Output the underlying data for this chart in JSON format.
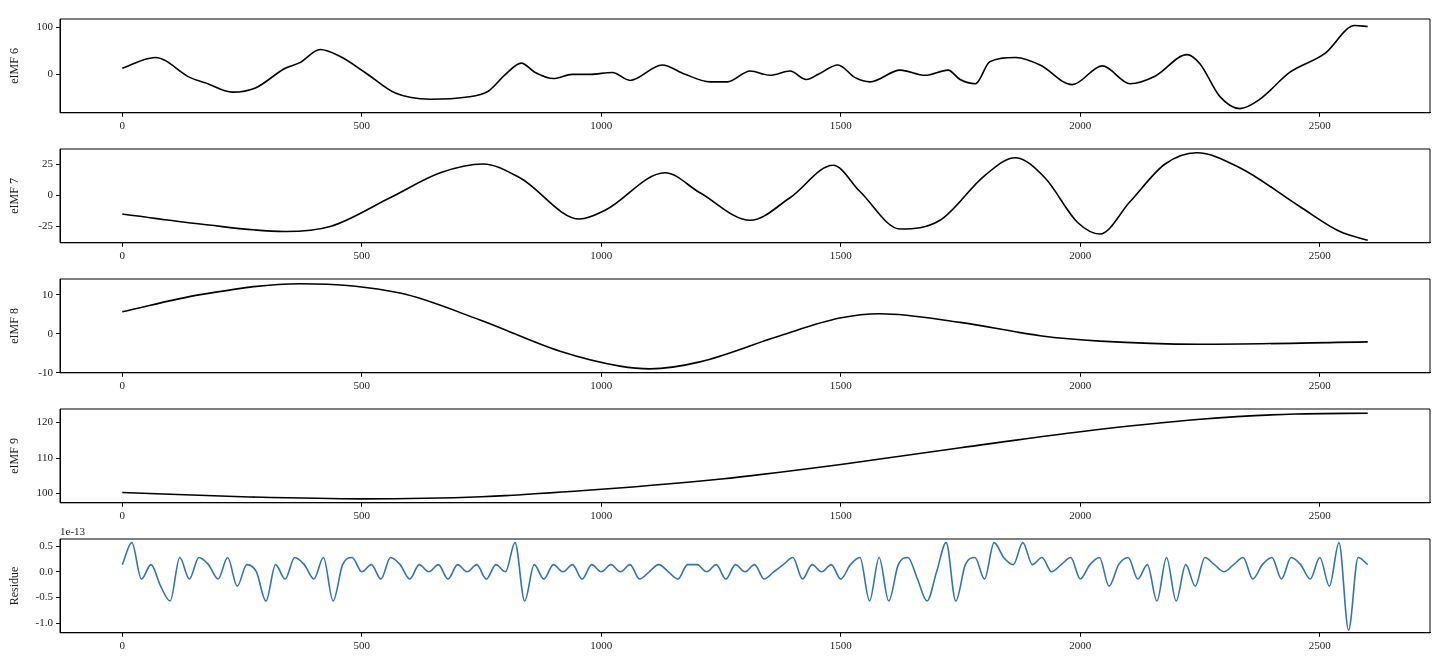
{
  "chart_data": [
    {
      "type": "line",
      "ylabel": "eIMF 6",
      "xlim": [
        -130,
        2730
      ],
      "xticks": [
        0,
        500,
        1000,
        1500,
        2000,
        2500
      ],
      "ylim": [
        -82,
        118
      ],
      "yticks": [
        0,
        100
      ],
      "x": [
        0,
        69,
        142,
        173,
        230,
        278,
        340,
        371,
        413,
        455,
        507,
        570,
        643,
        716,
        764,
        800,
        833,
        862,
        900,
        939,
        977,
        1023,
        1060,
        1127,
        1175,
        1227,
        1263,
        1311,
        1352,
        1394,
        1428,
        1453,
        1494,
        1530,
        1561,
        1624,
        1676,
        1724,
        1749,
        1781,
        1811,
        1864,
        1916,
        1983,
        2046,
        2104,
        2156,
        2223,
        2250,
        2291,
        2333,
        2375,
        2437,
        2510,
        2573,
        2600
      ],
      "series": [
        {
          "color": "#000000",
          "values": [
            13,
            36,
            -7,
            -18,
            -38,
            -29,
            13,
            25,
            53,
            38,
            4,
            -40,
            -53,
            -49,
            -36,
            0,
            24,
            4,
            -9,
            0,
            0,
            4,
            -13,
            20,
            0,
            -16,
            -16,
            7,
            -2,
            7,
            -11,
            0,
            20,
            -7,
            -16,
            9,
            -2,
            9,
            -11,
            -20,
            27,
            36,
            20,
            -22,
            18,
            -20,
            -4,
            42,
            22,
            -47,
            -73,
            -53,
            4,
            44,
            104,
            102
          ]
        }
      ]
    },
    {
      "type": "line",
      "ylabel": "eIMF 7",
      "xlim": [
        -130,
        2730
      ],
      "xticks": [
        0,
        500,
        1000,
        1500,
        2000,
        2500
      ],
      "ylim": [
        -38,
        37
      ],
      "yticks": [
        -25,
        0,
        25
      ],
      "x": [
        0,
        163,
        340,
        434,
        559,
        664,
        753,
        830,
        955,
        1008,
        1133,
        1206,
        1311,
        1394,
        1484,
        1540,
        1624,
        1707,
        1801,
        1864,
        1926,
        1995,
        2041,
        2104,
        2177,
        2243,
        2333,
        2458,
        2542,
        2600
      ],
      "series": [
        {
          "color": "#000000",
          "values": [
            -15,
            -23,
            -29,
            -25,
            -2,
            18,
            25,
            14,
            -19,
            -12,
            18,
            2,
            -20,
            -2,
            24,
            3,
            -27,
            -20,
            16,
            30,
            14,
            -22,
            -31,
            -5,
            25,
            34,
            22,
            -9,
            -29,
            -36
          ]
        }
      ]
    },
    {
      "type": "line",
      "ylabel": "eIMF 8",
      "xlim": [
        -130,
        2730
      ],
      "xticks": [
        0,
        500,
        1000,
        1500,
        2000,
        2500
      ],
      "ylim": [
        -10,
        14
      ],
      "yticks": [
        -10,
        0,
        10
      ],
      "x": [
        0,
        163,
        371,
        580,
        747,
        914,
        1039,
        1102,
        1206,
        1373,
        1498,
        1582,
        1749,
        1916,
        2041,
        2250,
        2600
      ],
      "series": [
        {
          "color": "#000000",
          "values": [
            5.6,
            10,
            12.8,
            10.4,
            3.5,
            -4.5,
            -8.3,
            -9,
            -7.2,
            -0.5,
            4,
            5.1,
            2.9,
            -0.5,
            -1.9,
            -2.7,
            -2.1
          ]
        }
      ]
    },
    {
      "type": "line",
      "ylabel": "eIMF 9",
      "xlim": [
        -130,
        2730
      ],
      "xticks": [
        0,
        500,
        1000,
        1500,
        2000,
        2500
      ],
      "ylim": [
        97.4,
        123.8
      ],
      "yticks": [
        100,
        110,
        120
      ],
      "x": [
        0,
        250,
        500,
        750,
        1000,
        1250,
        1500,
        1750,
        2000,
        2250,
        2450,
        2600
      ],
      "series": [
        {
          "color": "#000000",
          "values": [
            100.3,
            99.1,
            98.5,
            99.1,
            101.2,
            104.1,
            108.2,
            112.9,
            117.4,
            120.9,
            122.4,
            122.6
          ]
        }
      ]
    },
    {
      "type": "line",
      "ylabel": "Residue",
      "annotations": [
        "1e-13"
      ],
      "xlim": [
        -130,
        2730
      ],
      "xticks": [
        0,
        500,
        1000,
        1500,
        2000,
        2500
      ],
      "ylim": [
        -1.19,
        0.64
      ],
      "yticks": [
        {
          "value": -1,
          "label": "-1.0"
        },
        -0.5,
        {
          "value": 0,
          "label": "0.0"
        },
        0.5
      ],
      "x": [
        0,
        20,
        40,
        60,
        80,
        100,
        120,
        140,
        160,
        180,
        200,
        220,
        240,
        260,
        280,
        300,
        320,
        340,
        360,
        380,
        400,
        420,
        440,
        460,
        480,
        500,
        520,
        540,
        560,
        580,
        600,
        620,
        640,
        660,
        680,
        700,
        720,
        740,
        760,
        780,
        800,
        820,
        840,
        860,
        880,
        900,
        920,
        940,
        960,
        980,
        1000,
        1020,
        1040,
        1060,
        1080,
        1100,
        1120,
        1140,
        1160,
        1180,
        1200,
        1220,
        1240,
        1260,
        1280,
        1300,
        1320,
        1340,
        1360,
        1380,
        1400,
        1420,
        1440,
        1460,
        1480,
        1500,
        1520,
        1540,
        1560,
        1580,
        1600,
        1620,
        1640,
        1660,
        1680,
        1700,
        1720,
        1740,
        1760,
        1780,
        1800,
        1820,
        1840,
        1860,
        1880,
        1900,
        1920,
        1940,
        1960,
        1980,
        2000,
        2020,
        2040,
        2060,
        2080,
        2100,
        2120,
        2140,
        2160,
        2180,
        2200,
        2220,
        2240,
        2260,
        2280,
        2300,
        2320,
        2340,
        2360,
        2380,
        2400,
        2420,
        2440,
        2460,
        2480,
        2500,
        2520,
        2540,
        2560,
        2580,
        2600
      ],
      "series": [
        {
          "color": "#3274b5",
          "values": [
            0.14,
            0.57,
            -0.14,
            0.14,
            -0.28,
            -0.57,
            0.28,
            -0.14,
            0.28,
            0.14,
            -0.14,
            0.28,
            -0.28,
            0.14,
            0,
            -0.57,
            0.14,
            -0.14,
            0.28,
            0.14,
            -0.14,
            0.28,
            -0.57,
            0.14,
            0.28,
            0,
            0.14,
            -0.14,
            0.28,
            0.14,
            -0.14,
            0.14,
            0,
            0.14,
            -0.14,
            0.14,
            0,
            0.14,
            -0.14,
            0.14,
            0,
            0.57,
            -0.57,
            0.14,
            -0.14,
            0.14,
            0,
            0.14,
            -0.14,
            0.14,
            0,
            0.14,
            0,
            0.14,
            -0.14,
            0,
            0.14,
            0,
            -0.14,
            0.14,
            0.14,
            0,
            0.14,
            -0.14,
            0.14,
            0,
            0.14,
            -0.14,
            0,
            0.14,
            0.28,
            -0.14,
            0.14,
            0,
            0.14,
            -0.14,
            0.14,
            0.28,
            -0.57,
            0.28,
            -0.57,
            0.14,
            0.28,
            -0.14,
            -0.57,
            0,
            0.57,
            -0.57,
            0.14,
            0.28,
            -0.14,
            0.57,
            0.28,
            0.14,
            0.57,
            0.14,
            0.28,
            0,
            0.14,
            0.28,
            -0.14,
            0.14,
            0.28,
            -0.28,
            0.14,
            0.28,
            -0.14,
            0.14,
            -0.57,
            0.28,
            -0.57,
            0.14,
            -0.28,
            0.28,
            0.14,
            0,
            0.14,
            0.28,
            -0.14,
            0.14,
            0.28,
            -0.14,
            0.28,
            0.14,
            -0.14,
            0.28,
            -0.28,
            0.57,
            -1.14,
            0.28,
            0.14
          ]
        }
      ]
    }
  ]
}
